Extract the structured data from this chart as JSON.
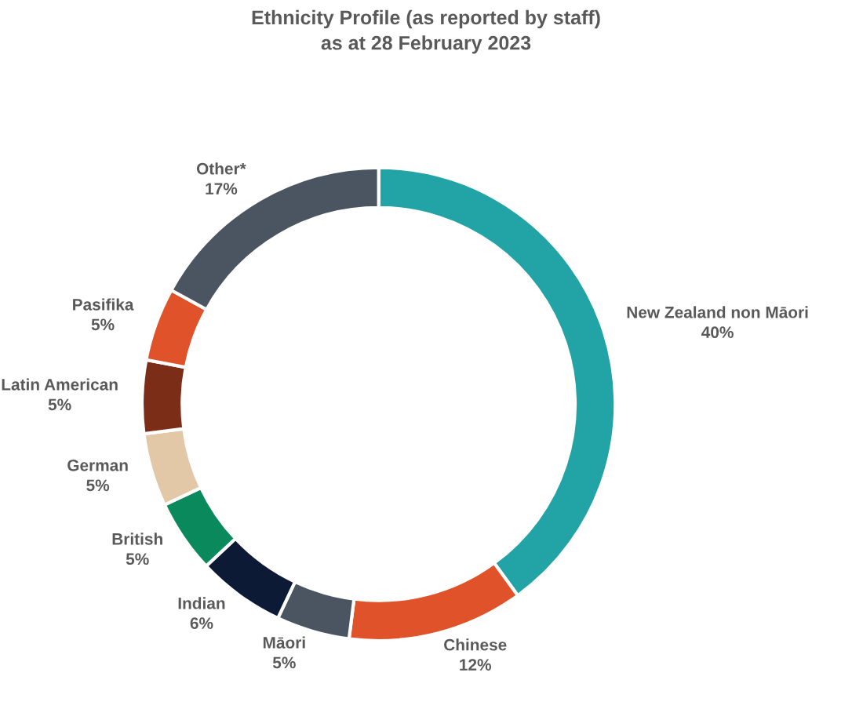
{
  "chart_data": {
    "type": "donut",
    "title": "Ethnicity Profile (as reported by staff)\nas at 28 February 2023",
    "categories": [
      "New Zealand non Māori",
      "Chinese",
      "Māori",
      "Indian",
      "British",
      "German",
      "Latin American",
      "Pasifika",
      "Other*"
    ],
    "values": [
      40,
      12,
      5,
      6,
      5,
      5,
      5,
      5,
      17
    ],
    "value_labels": [
      "40%",
      "12%",
      "5%",
      "6%",
      "5%",
      "5%",
      "5%",
      "5%",
      "17%"
    ],
    "colors": [
      "#22a3a6",
      "#e0522a",
      "#4a5561",
      "#0d1a36",
      "#0a8a5c",
      "#e2c8a6",
      "#7b2d17",
      "#e0522a",
      "#4a5561"
    ],
    "legend": false
  }
}
